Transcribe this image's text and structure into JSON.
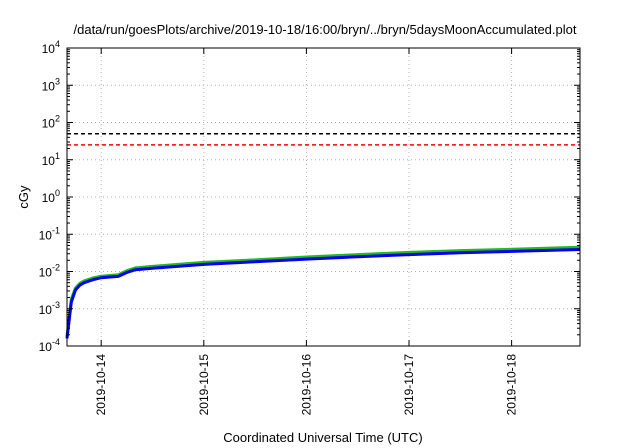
{
  "chart_data": {
    "type": "line",
    "title": "/data/run/goesPlots/archive/2019-10-18/16:00/bryn/../bryn/5daysMoonAccumulated.plot",
    "xlabel": "Coordinated Universal Time (UTC)",
    "ylabel": "cGy",
    "y_scale": "log",
    "ylim": [
      0.0001,
      10000
    ],
    "y_ticks": [
      {
        "value": 0.0001,
        "base": "10",
        "exp": "-4"
      },
      {
        "value": 0.001,
        "base": "10",
        "exp": "-3"
      },
      {
        "value": 0.01,
        "base": "10",
        "exp": "-2"
      },
      {
        "value": 0.1,
        "base": "10",
        "exp": "-1"
      },
      {
        "value": 1,
        "base": "10",
        "exp": "0"
      },
      {
        "value": 10,
        "base": "10",
        "exp": "1"
      },
      {
        "value": 100,
        "base": "10",
        "exp": "2"
      },
      {
        "value": 1000,
        "base": "10",
        "exp": "3"
      },
      {
        "value": 10000,
        "base": "10",
        "exp": "4"
      }
    ],
    "xlim": [
      "2019-10-13T16:00",
      "2019-10-18T16:00"
    ],
    "x_ticks": [
      {
        "value": "2019-10-14T00:00",
        "label": "2019-10-14"
      },
      {
        "value": "2019-10-15T00:00",
        "label": "2019-10-15"
      },
      {
        "value": "2019-10-16T00:00",
        "label": "2019-10-16"
      },
      {
        "value": "2019-10-17T00:00",
        "label": "2019-10-17"
      },
      {
        "value": "2019-10-18T00:00",
        "label": "2019-10-18"
      }
    ],
    "grid": true,
    "reference_lines": [
      {
        "value": 50,
        "color": "#000000",
        "style": "dashed"
      },
      {
        "value": 25,
        "color": "#ff0000",
        "style": "dashed"
      }
    ],
    "series": [
      {
        "color": "#22bb22",
        "x": [
          "2019-10-13T16:00",
          "2019-10-13T17:00",
          "2019-10-13T18:00",
          "2019-10-13T19:00",
          "2019-10-13T20:00",
          "2019-10-13T22:00",
          "2019-10-14T00:00",
          "2019-10-14T04:00",
          "2019-10-14T06:00",
          "2019-10-14T08:00",
          "2019-10-14T12:00",
          "2019-10-15T00:00",
          "2019-10-15T12:00",
          "2019-10-16T00:00",
          "2019-10-16T12:00",
          "2019-10-17T00:00",
          "2019-10-17T12:00",
          "2019-10-18T00:00",
          "2019-10-18T16:00"
        ],
        "y": [
          0.00018,
          0.0018,
          0.0036,
          0.0048,
          0.0056,
          0.0067,
          0.0075,
          0.0082,
          0.0105,
          0.0125,
          0.0137,
          0.0175,
          0.0205,
          0.0245,
          0.0285,
          0.0325,
          0.0365,
          0.0395,
          0.0445
        ]
      },
      {
        "color": "#0000ee",
        "x": [
          "2019-10-13T16:00",
          "2019-10-13T17:00",
          "2019-10-13T18:00",
          "2019-10-13T19:00",
          "2019-10-13T20:00",
          "2019-10-13T22:00",
          "2019-10-14T00:00",
          "2019-10-14T04:00",
          "2019-10-14T06:00",
          "2019-10-14T08:00",
          "2019-10-14T12:00",
          "2019-10-15T00:00",
          "2019-10-15T12:00",
          "2019-10-16T00:00",
          "2019-10-16T12:00",
          "2019-10-17T00:00",
          "2019-10-17T12:00",
          "2019-10-18T00:00",
          "2019-10-18T16:00"
        ],
        "y": [
          0.00016,
          0.0015,
          0.0032,
          0.0043,
          0.005,
          0.006,
          0.0068,
          0.0074,
          0.0094,
          0.0112,
          0.0123,
          0.0155,
          0.0182,
          0.0215,
          0.025,
          0.0285,
          0.032,
          0.0347,
          0.039
        ]
      }
    ]
  }
}
